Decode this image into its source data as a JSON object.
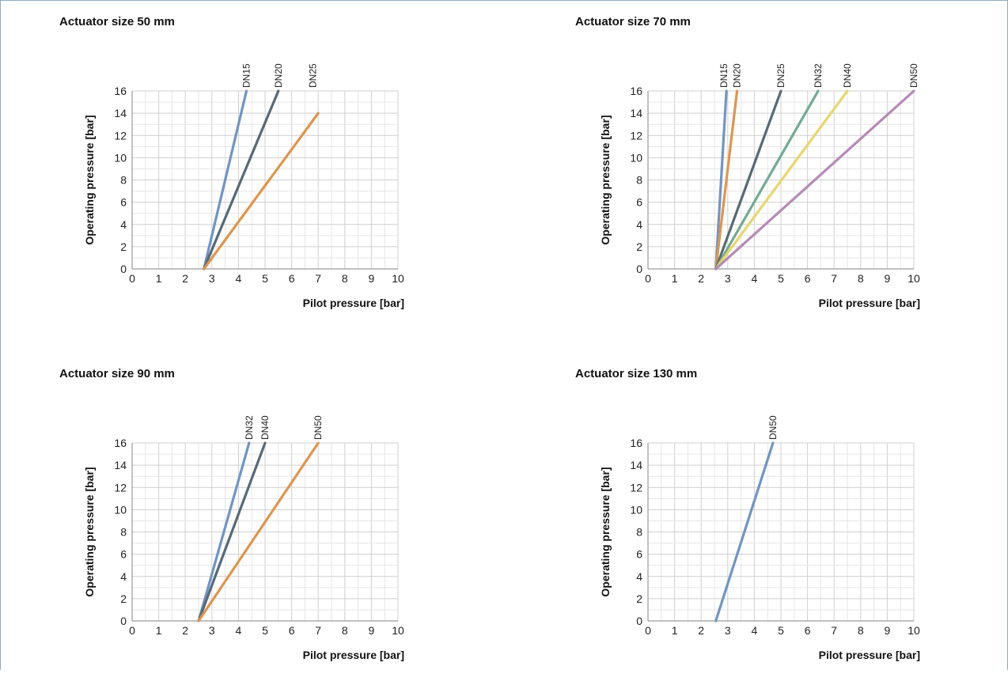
{
  "chart_data": [
    {
      "type": "line",
      "title": "Actuator size 50 mm",
      "xlabel": "Pilot pressure [bar]",
      "ylabel": "Operating pressure [bar]",
      "xlim": [
        0,
        10
      ],
      "ylim": [
        0,
        16
      ],
      "xticks": [
        "0",
        "1",
        "2",
        "3",
        "4",
        "5",
        "6",
        "7",
        "8",
        "9",
        "10"
      ],
      "yticks": [
        "0",
        "2",
        "4",
        "6",
        "8",
        "10",
        "12",
        "14",
        "16"
      ],
      "grid": true,
      "series": [
        {
          "name": "DN15",
          "color": "#7094c6",
          "x": [
            2.7,
            4.3
          ],
          "y": [
            0,
            16
          ]
        },
        {
          "name": "DN20",
          "color": "#566a76",
          "x": [
            2.7,
            5.5
          ],
          "y": [
            0,
            16
          ]
        },
        {
          "name": "DN25",
          "color": "#e0954a",
          "x": [
            2.7,
            7.0
          ],
          "y": [
            0,
            14
          ]
        }
      ],
      "label_x": [
        4.3,
        5.5,
        6.8
      ]
    },
    {
      "type": "line",
      "title": "Actuator size 70 mm",
      "xlabel": "Pilot pressure [bar]",
      "ylabel": "Operating pressure [bar]",
      "xlim": [
        0,
        10
      ],
      "ylim": [
        0,
        16
      ],
      "xticks": [
        "0",
        "1",
        "2",
        "3",
        "4",
        "5",
        "6",
        "7",
        "8",
        "9",
        "10"
      ],
      "yticks": [
        "0",
        "2",
        "4",
        "6",
        "8",
        "10",
        "12",
        "14",
        "16"
      ],
      "grid": true,
      "series": [
        {
          "name": "DN15",
          "color": "#7094c6",
          "x": [
            2.55,
            2.95
          ],
          "y": [
            0,
            16
          ]
        },
        {
          "name": "DN20",
          "color": "#e0954a",
          "x": [
            2.55,
            3.35
          ],
          "y": [
            0,
            16
          ]
        },
        {
          "name": "DN25",
          "color": "#566a76",
          "x": [
            2.55,
            5.0
          ],
          "y": [
            0,
            16
          ]
        },
        {
          "name": "DN32",
          "color": "#72ab93",
          "x": [
            2.55,
            6.4
          ],
          "y": [
            0,
            16
          ]
        },
        {
          "name": "DN40",
          "color": "#e8d66a",
          "x": [
            2.55,
            7.5
          ],
          "y": [
            0,
            16
          ]
        },
        {
          "name": "DN50",
          "color": "#b58bb6",
          "x": [
            2.55,
            10.0
          ],
          "y": [
            0,
            16
          ]
        }
      ],
      "label_x": [
        2.85,
        3.35,
        5.0,
        6.4,
        7.5,
        10.0
      ]
    },
    {
      "type": "line",
      "title": "Actuator size 90 mm",
      "xlabel": "Pilot pressure [bar]",
      "ylabel": "Operating pressure [bar]",
      "xlim": [
        0,
        10
      ],
      "ylim": [
        0,
        16
      ],
      "xticks": [
        "0",
        "1",
        "2",
        "3",
        "4",
        "5",
        "6",
        "7",
        "8",
        "9",
        "10"
      ],
      "yticks": [
        "0",
        "2",
        "4",
        "6",
        "8",
        "10",
        "12",
        "14",
        "16"
      ],
      "grid": true,
      "series": [
        {
          "name": "DN32",
          "color": "#7094c6",
          "x": [
            2.5,
            4.4
          ],
          "y": [
            0,
            16
          ]
        },
        {
          "name": "DN40",
          "color": "#566a76",
          "x": [
            2.5,
            5.0
          ],
          "y": [
            0,
            16
          ]
        },
        {
          "name": "DN50",
          "color": "#e0954a",
          "x": [
            2.5,
            7.0
          ],
          "y": [
            0,
            16
          ]
        }
      ],
      "label_x": [
        4.4,
        5.0,
        7.0
      ]
    },
    {
      "type": "line",
      "title": "Actuator size 130 mm",
      "xlabel": "Pilot pressure [bar]",
      "ylabel": "Operating pressure [bar]",
      "xlim": [
        0,
        10
      ],
      "ylim": [
        0,
        16
      ],
      "xticks": [
        "0",
        "1",
        "2",
        "3",
        "4",
        "5",
        "6",
        "7",
        "8",
        "9",
        "10"
      ],
      "yticks": [
        "0",
        "2",
        "4",
        "6",
        "8",
        "10",
        "12",
        "14",
        "16"
      ],
      "grid": true,
      "series": [
        {
          "name": "DN50",
          "color": "#7094c6",
          "x": [
            2.55,
            4.7
          ],
          "y": [
            0,
            16
          ]
        }
      ],
      "label_x": [
        4.7
      ]
    }
  ]
}
